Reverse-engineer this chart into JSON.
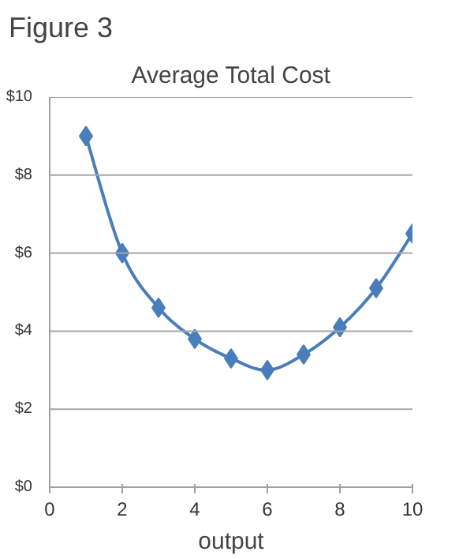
{
  "chart_data": {
    "type": "line",
    "title": "Figure 3",
    "subtitle": "Average Total Cost",
    "xlabel": "output",
    "x": [
      1,
      2,
      3,
      4,
      5,
      6,
      7,
      8,
      9,
      10
    ],
    "series": [
      {
        "color": "#4a7ebb",
        "values": [
          9,
          6,
          4.6,
          3.8,
          3.3,
          3.0,
          3.4,
          4.1,
          5.1,
          6.5
        ]
      }
    ],
    "xlim": [
      0,
      10
    ],
    "xticks": [
      0,
      2,
      4,
      6,
      8,
      10
    ],
    "ylim": [
      0,
      10
    ],
    "yticks": [
      {
        "value": 0,
        "label": "$0"
      },
      {
        "value": 2,
        "label": "$2"
      },
      {
        "value": 4,
        "label": "$4"
      },
      {
        "value": 6,
        "label": "$6"
      },
      {
        "value": 8,
        "label": "$8"
      },
      {
        "value": 10,
        "label": "$10"
      }
    ],
    "grid": "y",
    "marker": "diamond",
    "line_style": "solid"
  }
}
